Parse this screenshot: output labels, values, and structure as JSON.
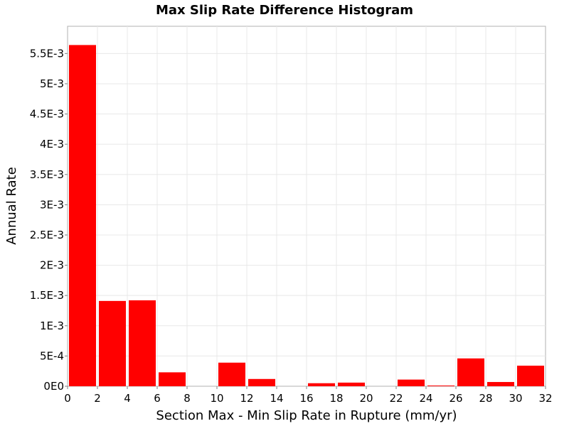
{
  "chart_data": {
    "type": "bar",
    "title": "Max Slip Rate Difference Histogram",
    "xlabel": "Section Max - Min Slip Rate in Rupture (mm/yr)",
    "ylabel": "Annual Rate",
    "xlim": [
      0,
      32
    ],
    "ylim": [
      0,
      0.00595
    ],
    "bin_width": 2,
    "x_ticks": [
      {
        "value": 0,
        "label": "0"
      },
      {
        "value": 2,
        "label": "2"
      },
      {
        "value": 4,
        "label": "4"
      },
      {
        "value": 6,
        "label": "6"
      },
      {
        "value": 8,
        "label": "8"
      },
      {
        "value": 10,
        "label": "10"
      },
      {
        "value": 12,
        "label": "12"
      },
      {
        "value": 14,
        "label": "14"
      },
      {
        "value": 16,
        "label": "16"
      },
      {
        "value": 18,
        "label": "18"
      },
      {
        "value": 20,
        "label": "20"
      },
      {
        "value": 22,
        "label": "22"
      },
      {
        "value": 24,
        "label": "24"
      },
      {
        "value": 26,
        "label": "26"
      },
      {
        "value": 28,
        "label": "28"
      },
      {
        "value": 30,
        "label": "30"
      },
      {
        "value": 32,
        "label": "32"
      }
    ],
    "y_ticks": [
      {
        "value": 0,
        "label": "0E0"
      },
      {
        "value": 0.0005,
        "label": "5E-4"
      },
      {
        "value": 0.001,
        "label": "1E-3"
      },
      {
        "value": 0.0015,
        "label": "1.5E-3"
      },
      {
        "value": 0.002,
        "label": "2E-3"
      },
      {
        "value": 0.0025,
        "label": "2.5E-3"
      },
      {
        "value": 0.003,
        "label": "3E-3"
      },
      {
        "value": 0.0035,
        "label": "3.5E-3"
      },
      {
        "value": 0.004,
        "label": "4E-3"
      },
      {
        "value": 0.0045,
        "label": "4.5E-3"
      },
      {
        "value": 0.005,
        "label": "5E-3"
      },
      {
        "value": 0.0055,
        "label": "5.5E-3"
      }
    ],
    "bins": [
      {
        "x": 1,
        "value": 0.00564
      },
      {
        "x": 3,
        "value": 0.00141
      },
      {
        "x": 5,
        "value": 0.00142
      },
      {
        "x": 7,
        "value": 0.00023
      },
      {
        "x": 9,
        "value": 0.0
      },
      {
        "x": 11,
        "value": 0.00039
      },
      {
        "x": 13,
        "value": 0.00012
      },
      {
        "x": 15,
        "value": 0.0
      },
      {
        "x": 17,
        "value": 5e-05
      },
      {
        "x": 19,
        "value": 6e-05
      },
      {
        "x": 21,
        "value": 0.0
      },
      {
        "x": 23,
        "value": 0.00011
      },
      {
        "x": 25,
        "value": 1e-05
      },
      {
        "x": 27,
        "value": 0.00046
      },
      {
        "x": 29,
        "value": 7e-05
      },
      {
        "x": 31,
        "value": 0.00034
      }
    ],
    "bar_color": "#ff0000",
    "grid": true,
    "legend": "none"
  }
}
